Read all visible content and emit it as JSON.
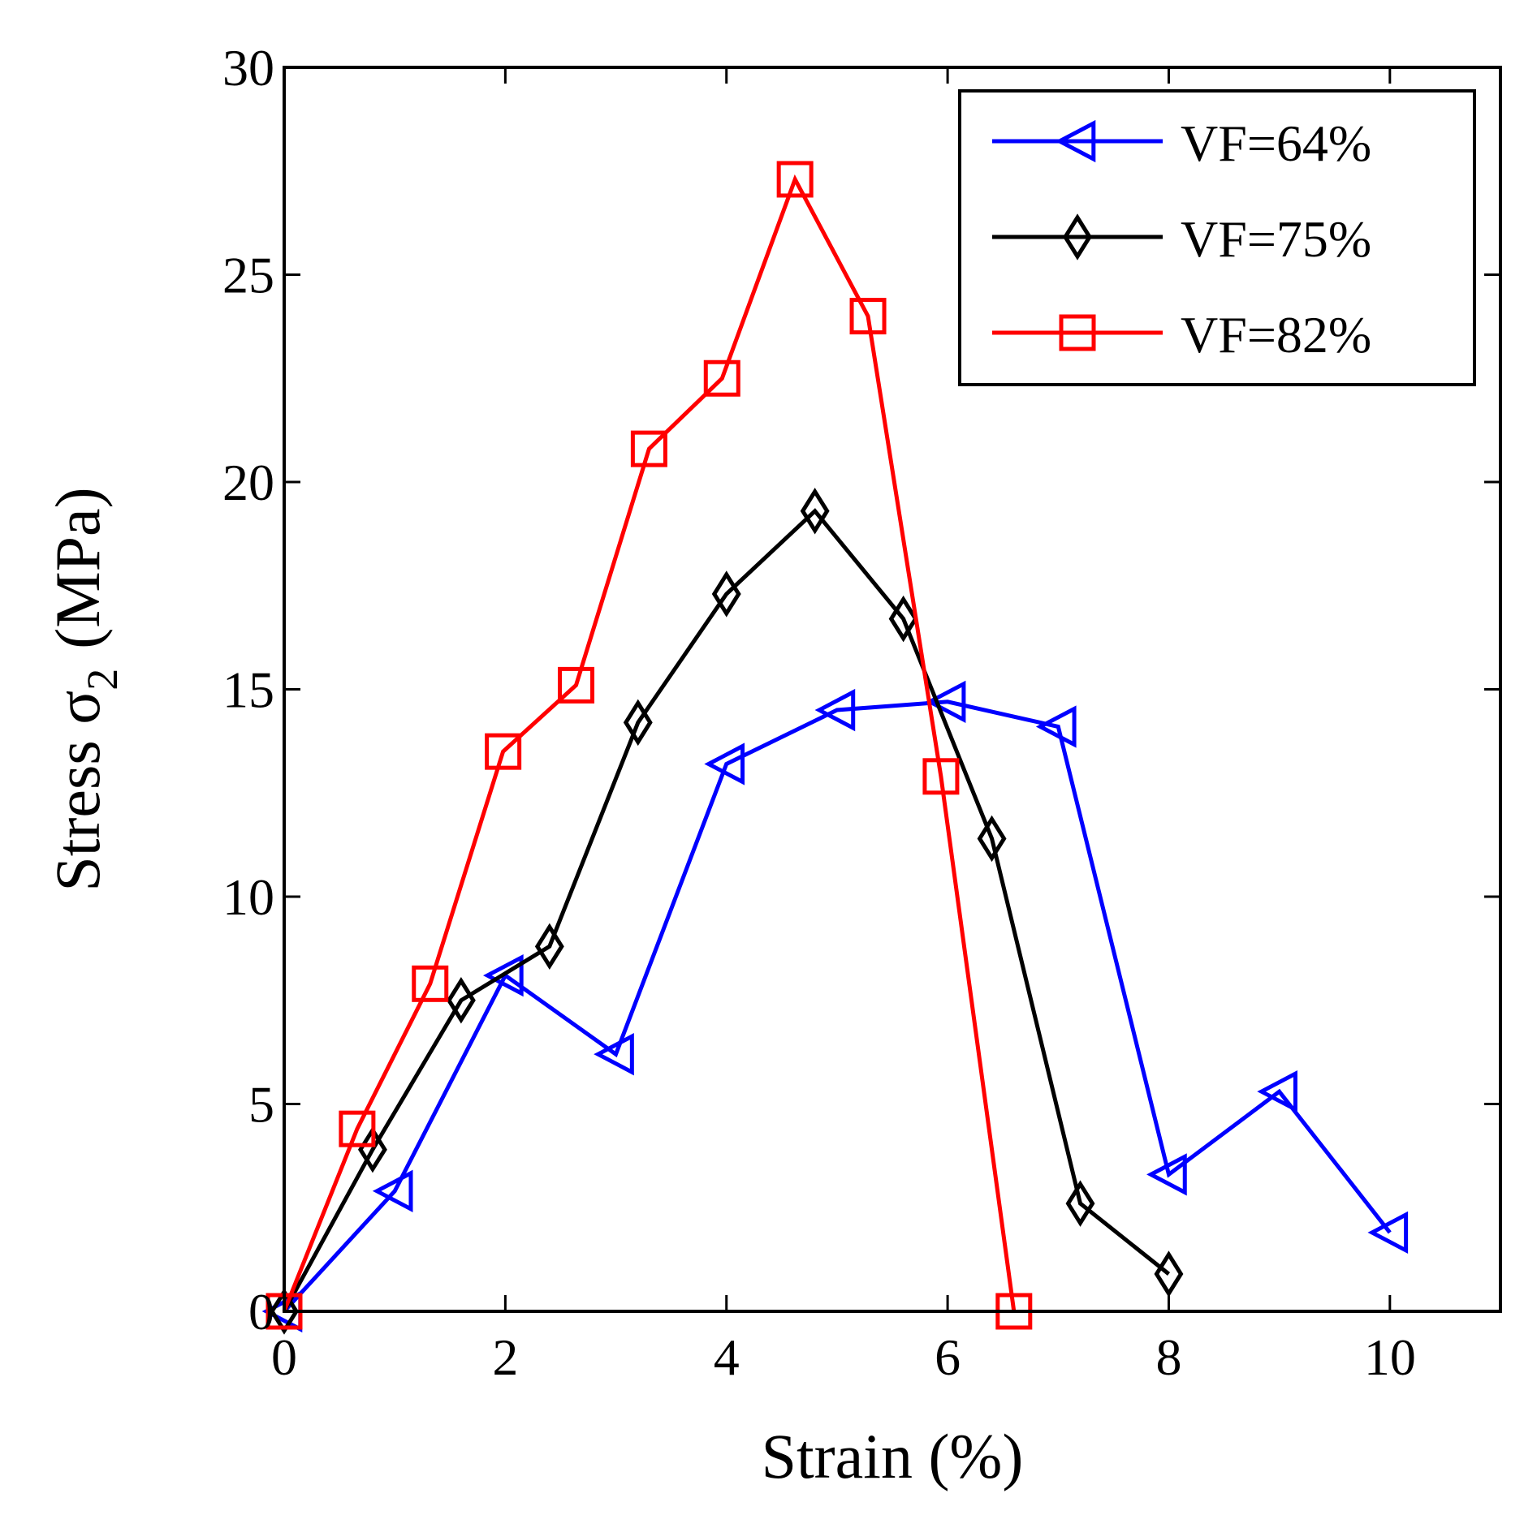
{
  "chart_data": {
    "type": "line",
    "title": "",
    "xlabel": "Strain (%)",
    "ylabel_main": "Stress σ",
    "ylabel_sub": "2",
    "ylabel_unit": "(MPa)",
    "xlim": [
      0,
      11
    ],
    "ylim": [
      0,
      30
    ],
    "xticks": [
      0,
      2,
      4,
      6,
      8,
      10
    ],
    "yticks": [
      0,
      5,
      10,
      15,
      20,
      25,
      30
    ],
    "xtick_labels": [
      "0",
      "2",
      "4",
      "6",
      "8",
      "10"
    ],
    "ytick_labels": [
      "0",
      "5",
      "10",
      "15",
      "20",
      "25",
      "30"
    ],
    "grid": false,
    "legend_position": "top-right",
    "series": [
      {
        "name": "VF=64%",
        "color": "#0000ff",
        "marker": "triangle-left",
        "x": [
          0,
          1,
          2,
          3,
          4,
          5,
          6,
          7,
          8,
          9,
          10
        ],
        "y": [
          0,
          2.9,
          8.1,
          6.2,
          13.2,
          14.5,
          14.7,
          14.1,
          3.3,
          5.3,
          1.9
        ]
      },
      {
        "name": "VF=75%",
        "color": "#000000",
        "marker": "diamond",
        "x": [
          0,
          0.8,
          1.6,
          2.4,
          3.2,
          4.0,
          4.8,
          5.6,
          6.4,
          7.2,
          8.0
        ],
        "y": [
          0,
          3.9,
          7.5,
          8.8,
          14.2,
          17.3,
          19.3,
          16.7,
          11.4,
          2.6,
          0.9
        ]
      },
      {
        "name": "VF=82%",
        "color": "#ff0000",
        "marker": "square",
        "x": [
          0,
          0.66,
          1.32,
          1.98,
          2.64,
          3.3,
          3.96,
          4.62,
          5.28,
          5.94,
          6.6
        ],
        "y": [
          0,
          4.4,
          7.9,
          13.5,
          15.1,
          20.8,
          22.5,
          27.3,
          24.0,
          12.9,
          0
        ]
      }
    ]
  }
}
